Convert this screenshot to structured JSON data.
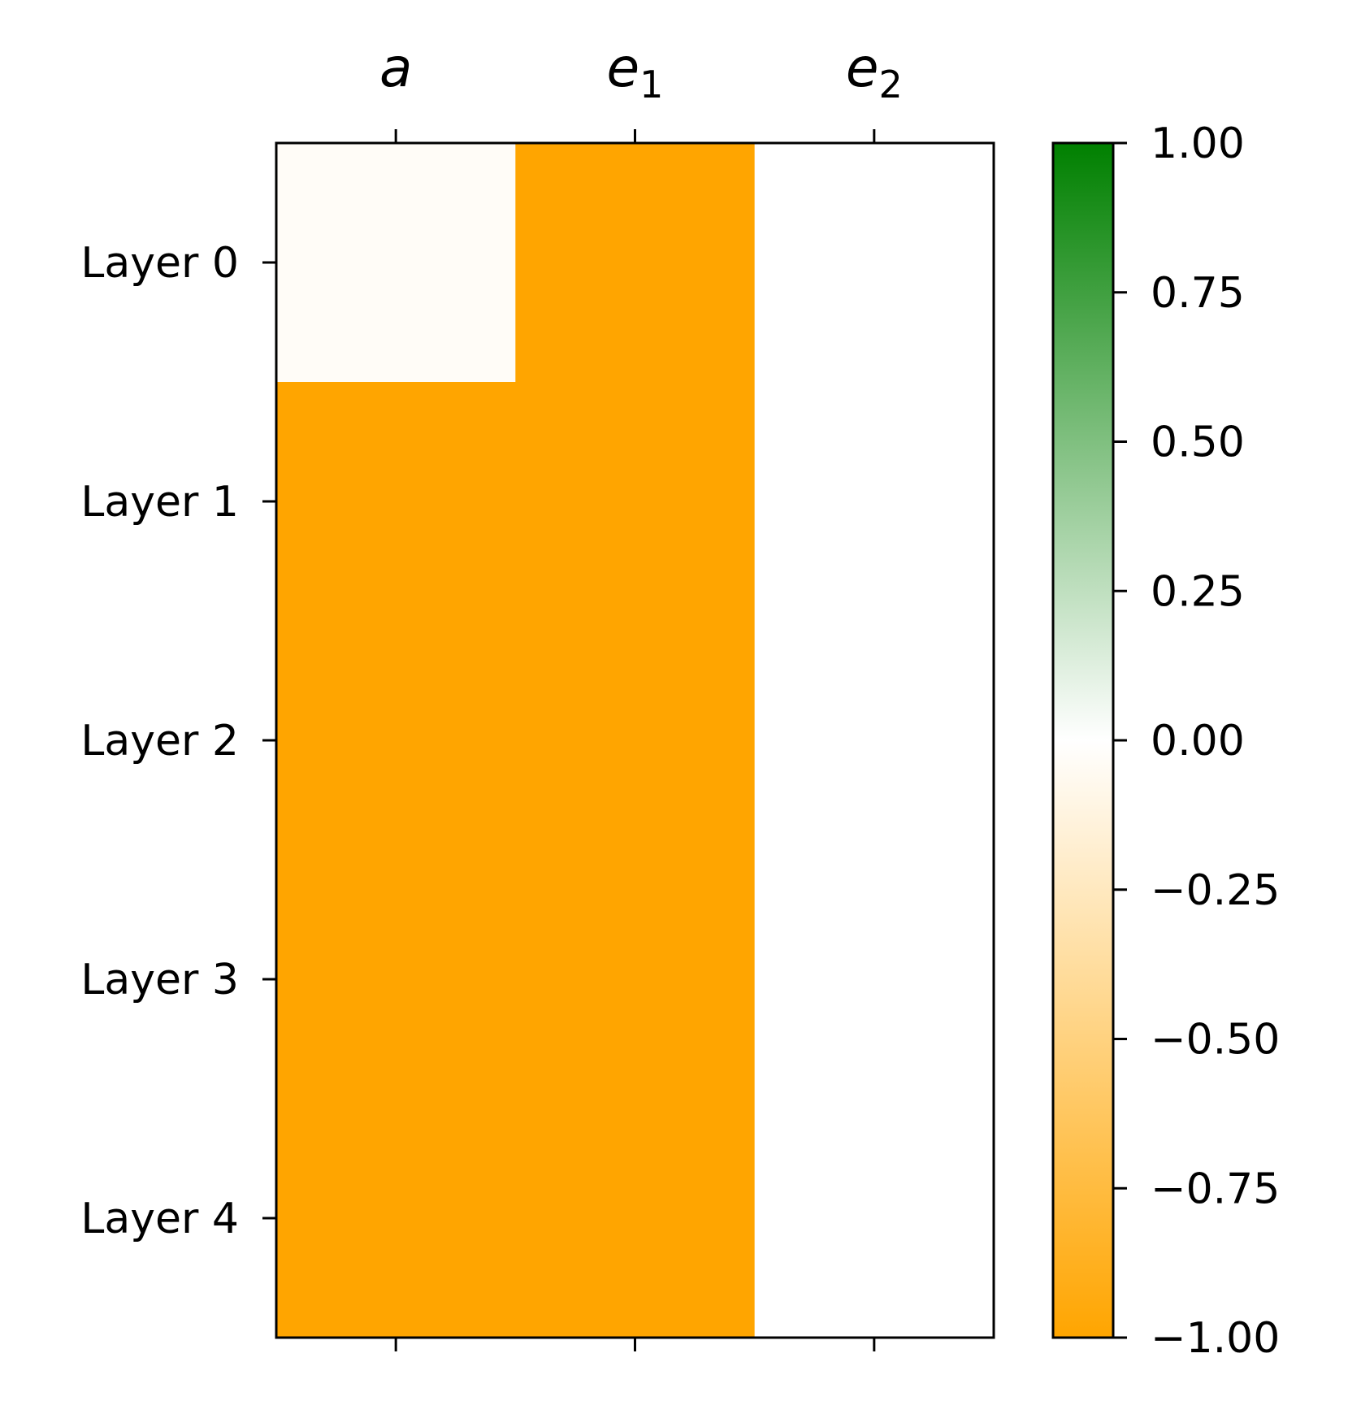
{
  "chart_data": {
    "type": "heatmap",
    "columns": [
      {
        "base": "a",
        "sub": ""
      },
      {
        "base": "e",
        "sub": "1"
      },
      {
        "base": "e",
        "sub": "2"
      }
    ],
    "rows": [
      "Layer 0",
      "Layer 1",
      "Layer 2",
      "Layer 3",
      "Layer 4"
    ],
    "values": [
      [
        -0.03,
        -1.0,
        0.0
      ],
      [
        -1.0,
        -1.0,
        0.0
      ],
      [
        -1.0,
        -1.0,
        0.0
      ],
      [
        -1.0,
        -1.0,
        0.0
      ],
      [
        -1.0,
        -1.0,
        0.0
      ]
    ],
    "colorbar": {
      "min": -1.0,
      "max": 1.0,
      "ticks": [
        "1.00",
        "0.75",
        "0.50",
        "0.25",
        "0.00",
        "−0.25",
        "−0.50",
        "−0.75",
        "−1.00"
      ],
      "tick_values": [
        1.0,
        0.75,
        0.5,
        0.25,
        0.0,
        -0.25,
        -0.5,
        -0.75,
        -1.0
      ],
      "colors": {
        "low": "#ffa500",
        "mid": "#ffffff",
        "high": "#008000"
      }
    },
    "x_tick_position": "top"
  }
}
